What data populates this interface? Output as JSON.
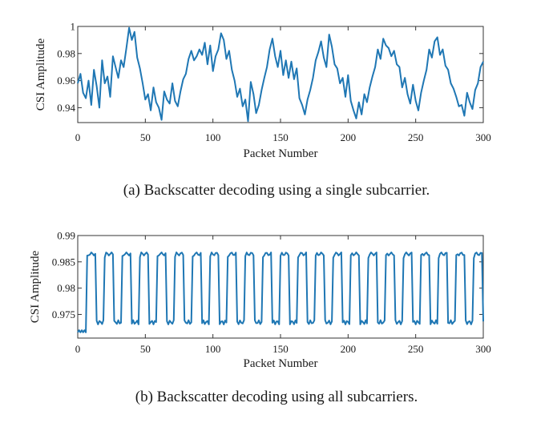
{
  "chart_data": [
    {
      "type": "line",
      "caption": "(a) Backscatter decoding using a single subcarrier.",
      "xlabel": "Packet Number",
      "ylabel": "CSI Amplitude",
      "xlim": [
        0,
        300
      ],
      "ylim": [
        0.929,
        1.0
      ],
      "xticks": [
        0,
        50,
        100,
        150,
        200,
        250,
        300
      ],
      "yticks": [
        0.94,
        0.96,
        0.98,
        1
      ],
      "ytick_labels": [
        "0.94",
        "0.96",
        "0.98",
        "1"
      ],
      "grid": false,
      "color": "#1f77b4",
      "series": [
        {
          "x": [
            0,
            2,
            4,
            6,
            8,
            10,
            12,
            14,
            16,
            18,
            20,
            22,
            24,
            26,
            28,
            30,
            32,
            34,
            36,
            38,
            40,
            42,
            44,
            46,
            48,
            50,
            52,
            54,
            56,
            58,
            60,
            62,
            64,
            66,
            68,
            70,
            72,
            74,
            76,
            78,
            80,
            82,
            84,
            86,
            88,
            90,
            92,
            94,
            96,
            98,
            100,
            102,
            104,
            106,
            108,
            110,
            112,
            114,
            116,
            118,
            120,
            122,
            124,
            126,
            128,
            130,
            132,
            134,
            136,
            138,
            140,
            142,
            144,
            146,
            148,
            150,
            152,
            154,
            156,
            158,
            160,
            162,
            164,
            166,
            168,
            170,
            172,
            174,
            176,
            178,
            180,
            182,
            184,
            186,
            188,
            190,
            192,
            194,
            196,
            198,
            200,
            202,
            204,
            206,
            208,
            210,
            212,
            214,
            216,
            218,
            220,
            222,
            224,
            226,
            228,
            230,
            232,
            234,
            236,
            238,
            240,
            242,
            244,
            246,
            248,
            250,
            252,
            254,
            256,
            258,
            260,
            262,
            264,
            266,
            268,
            270,
            272,
            274,
            276,
            278,
            280,
            282,
            284,
            286,
            288,
            290,
            292,
            294,
            296,
            298,
            300
          ],
          "y": [
            0.958,
            0.965,
            0.951,
            0.947,
            0.96,
            0.942,
            0.968,
            0.956,
            0.94,
            0.975,
            0.958,
            0.963,
            0.948,
            0.978,
            0.97,
            0.962,
            0.975,
            0.97,
            0.984,
            0.999,
            0.99,
            0.996,
            0.977,
            0.969,
            0.958,
            0.946,
            0.95,
            0.938,
            0.955,
            0.944,
            0.94,
            0.931,
            0.952,
            0.946,
            0.943,
            0.958,
            0.945,
            0.941,
            0.952,
            0.961,
            0.965,
            0.976,
            0.982,
            0.975,
            0.978,
            0.983,
            0.979,
            0.988,
            0.972,
            0.986,
            0.967,
            0.978,
            0.983,
            0.995,
            0.99,
            0.976,
            0.982,
            0.968,
            0.96,
            0.948,
            0.954,
            0.941,
            0.946,
            0.93,
            0.959,
            0.95,
            0.936,
            0.942,
            0.953,
            0.962,
            0.97,
            0.983,
            0.991,
            0.978,
            0.97,
            0.982,
            0.964,
            0.975,
            0.962,
            0.974,
            0.961,
            0.969,
            0.947,
            0.942,
            0.935,
            0.946,
            0.953,
            0.962,
            0.975,
            0.981,
            0.989,
            0.977,
            0.97,
            0.994,
            0.985,
            0.972,
            0.969,
            0.958,
            0.962,
            0.948,
            0.964,
            0.945,
            0.938,
            0.932,
            0.944,
            0.935,
            0.95,
            0.944,
            0.955,
            0.963,
            0.97,
            0.983,
            0.976,
            0.991,
            0.986,
            0.984,
            0.978,
            0.982,
            0.972,
            0.97,
            0.955,
            0.962,
            0.95,
            0.943,
            0.957,
            0.945,
            0.938,
            0.951,
            0.96,
            0.968,
            0.983,
            0.977,
            0.989,
            0.992,
            0.979,
            0.983,
            0.971,
            0.968,
            0.958,
            0.954,
            0.948,
            0.941,
            0.942,
            0.934,
            0.951,
            0.944,
            0.939,
            0.953,
            0.958,
            0.97,
            0.974
          ]
        }
      ]
    },
    {
      "type": "line",
      "caption": "(b) Backscatter decoding using all subcarriers.",
      "xlabel": "Packet Number",
      "ylabel": "CSI Amplitude",
      "xlim": [
        0,
        300
      ],
      "ylim": [
        0.9705,
        0.99
      ],
      "xticks": [
        0,
        50,
        100,
        150,
        200,
        250,
        300
      ],
      "yticks": [
        0.975,
        0.98,
        0.985,
        0.99
      ],
      "ytick_labels": [
        "0.975",
        "0.98",
        "0.985",
        "0.99"
      ],
      "grid": false,
      "color": "#1f77b4",
      "series": [
        {
          "period": 13,
          "high_level": 0.9865,
          "low_level": 0.9735,
          "start_level": 0.9716,
          "start_end_x": 7
        }
      ]
    }
  ]
}
